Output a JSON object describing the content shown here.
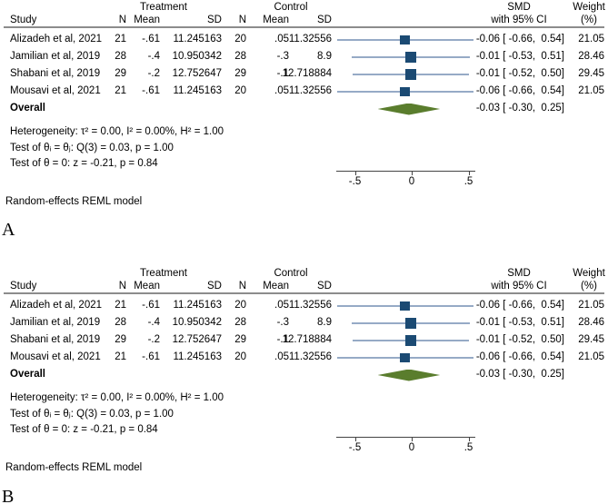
{
  "figure_title": "",
  "panel_labels": [
    "A",
    "B"
  ],
  "colors": {
    "marker": "#1b4a73",
    "ci_line": "#96aac6",
    "diamond": "#5a7d2d",
    "rule": "#8c8c8c",
    "axis": "#444444",
    "text": "#000000"
  },
  "forest": {
    "headers": {
      "group_treatment": "Treatment",
      "group_control": "Control",
      "study": "Study",
      "n": "N",
      "mean": "Mean",
      "sd": "SD",
      "smd_line1": "SMD",
      "smd_line2": "with 95% CI",
      "weight_line1": "Weight",
      "weight_line2": "(%)"
    },
    "studies": [
      {
        "name": "Alizadeh et al, 2021",
        "t_n": "21",
        "t_mean": "-.61",
        "t_sd": "11.245163",
        "c_n": "20",
        "c_mean": ".05",
        "c_sd": "11.32556",
        "smd_ci": "-0.06 [ -0.66,  0.54]",
        "weight": "21.05"
      },
      {
        "name": "Jamilian et al, 2019",
        "t_n": "28",
        "t_mean": "-.4",
        "t_sd": "10.950342",
        "c_n": "28",
        "c_mean": "-.3",
        "c_sd": "8.9",
        "smd_ci": "-0.01 [ -0.53,  0.51]",
        "weight": "28.46"
      },
      {
        "name": "Shabani et al, 2019",
        "t_n": "29",
        "t_mean": "-.2",
        "t_sd": "12.752647",
        "c_n": "29",
        "c_mean": "-.1",
        "c_sd": "12.718884",
        "smd_ci": "-0.01 [ -0.52,  0.50]",
        "weight": "29.45"
      },
      {
        "name": "Mousavi et al, 2021",
        "t_n": "21",
        "t_mean": "-.61",
        "t_sd": "11.245163",
        "c_n": "20",
        "c_mean": ".05",
        "c_sd": "11.32556",
        "smd_ci": "-0.06 [ -0.66,  0.54]",
        "weight": "21.05"
      }
    ],
    "overall_label": "Overall",
    "overall_smd_ci": "-0.03 [ -0.30,  0.25]",
    "stats": [
      "Heterogeneity: τ² = 0.00, I² = 0.00%, H² = 1.00",
      "Test of θᵢ = θⱼ: Q(3) = 0.03, p = 1.00",
      "Test of θ = 0: z = -0.21, p = 0.84"
    ],
    "footnote": "Random-effects REML model"
  },
  "axis": {
    "tick_labels": [
      "-.5",
      "0",
      ".5"
    ]
  },
  "chart_data": [
    {
      "type": "forest",
      "panel": "A",
      "effect_measure": "SMD",
      "model": "Random-effects REML model",
      "xticks": [
        -0.5,
        0,
        0.5
      ],
      "xtick_labels": [
        "-.5",
        "0",
        ".5"
      ],
      "studies": [
        {
          "study": "Alizadeh et al, 2021",
          "treatment": {
            "n": 21,
            "mean": -0.61,
            "sd": 11.245163
          },
          "control": {
            "n": 20,
            "mean": 0.05,
            "sd": 11.32556
          },
          "smd": -0.06,
          "ci": [
            -0.66,
            0.54
          ],
          "weight_pct": 21.05
        },
        {
          "study": "Jamilian et al, 2019",
          "treatment": {
            "n": 28,
            "mean": -0.4,
            "sd": 10.950342
          },
          "control": {
            "n": 28,
            "mean": -0.3,
            "sd": 8.9
          },
          "smd": -0.01,
          "ci": [
            -0.53,
            0.51
          ],
          "weight_pct": 28.46
        },
        {
          "study": "Shabani et al, 2019",
          "treatment": {
            "n": 29,
            "mean": -0.2,
            "sd": 12.752647
          },
          "control": {
            "n": 29,
            "mean": -0.1,
            "sd": 12.718884
          },
          "smd": -0.01,
          "ci": [
            -0.52,
            0.5
          ],
          "weight_pct": 29.45
        },
        {
          "study": "Mousavi et al, 2021",
          "treatment": {
            "n": 21,
            "mean": -0.61,
            "sd": 11.245163
          },
          "control": {
            "n": 20,
            "mean": 0.05,
            "sd": 11.32556
          },
          "smd": -0.06,
          "ci": [
            -0.66,
            0.54
          ],
          "weight_pct": 21.05
        }
      ],
      "overall": {
        "smd": -0.03,
        "ci": [
          -0.3,
          0.25
        ]
      },
      "heterogeneity": "τ² = 0.00, I² = 0.00%, H² = 1.00",
      "test_homogeneity": "Q(3) = 0.03, p = 1.00",
      "test_overall_effect": "z = -0.21, p = 0.84"
    },
    {
      "type": "forest",
      "panel": "B",
      "effect_measure": "SMD",
      "model": "Random-effects REML model",
      "xticks": [
        -0.5,
        0,
        0.5
      ],
      "xtick_labels": [
        "-.5",
        "0",
        ".5"
      ],
      "studies": [
        {
          "study": "Alizadeh et al, 2021",
          "treatment": {
            "n": 21,
            "mean": -0.61,
            "sd": 11.245163
          },
          "control": {
            "n": 20,
            "mean": 0.05,
            "sd": 11.32556
          },
          "smd": -0.06,
          "ci": [
            -0.66,
            0.54
          ],
          "weight_pct": 21.05
        },
        {
          "study": "Jamilian et al, 2019",
          "treatment": {
            "n": 28,
            "mean": -0.4,
            "sd": 10.950342
          },
          "control": {
            "n": 28,
            "mean": -0.3,
            "sd": 8.9
          },
          "smd": -0.01,
          "ci": [
            -0.53,
            0.51
          ],
          "weight_pct": 28.46
        },
        {
          "study": "Shabani et al, 2019",
          "treatment": {
            "n": 29,
            "mean": -0.2,
            "sd": 12.752647
          },
          "control": {
            "n": 29,
            "mean": -0.1,
            "sd": 12.718884
          },
          "smd": -0.01,
          "ci": [
            -0.52,
            0.5
          ],
          "weight_pct": 29.45
        },
        {
          "study": "Mousavi et al, 2021",
          "treatment": {
            "n": 21,
            "mean": -0.61,
            "sd": 11.245163
          },
          "control": {
            "n": 20,
            "mean": 0.05,
            "sd": 11.32556
          },
          "smd": -0.06,
          "ci": [
            -0.66,
            0.54
          ],
          "weight_pct": 21.05
        }
      ],
      "overall": {
        "smd": -0.03,
        "ci": [
          -0.3,
          0.25
        ]
      },
      "heterogeneity": "τ² = 0.00, I² = 0.00%, H² = 1.00",
      "test_homogeneity": "Q(3) = 0.03, p = 1.00",
      "test_overall_effect": "z = -0.21, p = 0.84"
    }
  ]
}
